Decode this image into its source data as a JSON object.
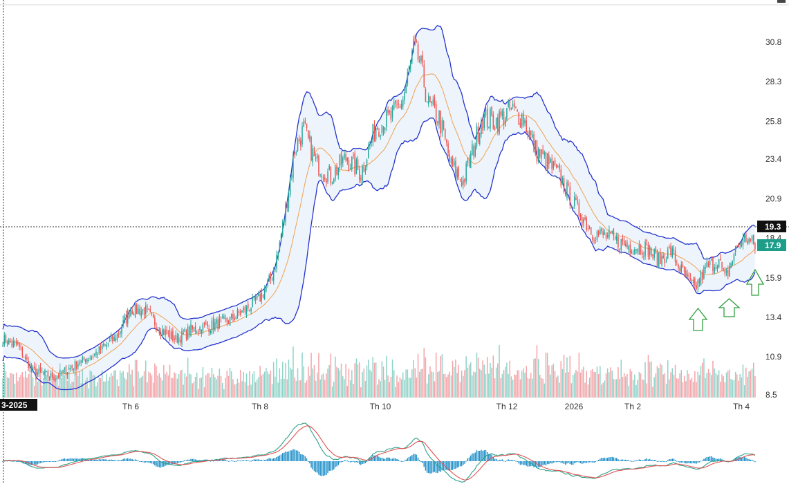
{
  "chart_data": {
    "type": "candlestick",
    "y_axis_ticks": [
      "30.8",
      "28.3",
      "25.8",
      "23.4",
      "20.9",
      "18.4",
      "15.9",
      "13.4",
      "10.9",
      "8.5"
    ],
    "x_axis_ticks": [
      "Th 6",
      "Th 8",
      "Th 10",
      "Th 12",
      "2026",
      "Th 2",
      "Th 4"
    ],
    "x_start_label": "3-2025",
    "ylim": [
      8.5,
      30.8
    ],
    "crosshair_price": "19.3",
    "last_price": "17.9",
    "last_price_color": "#1d9d8a",
    "up_color": "#26a69a",
    "down_color": "#ef5350",
    "band_color": "#2233cc",
    "mid_color": "#f0a050",
    "macd_line_color": "#2aa08a",
    "signal_line_color": "#e05050",
    "hist_color": "#1f8fc8",
    "indicators": [
      "Bollinger Bands",
      "MACD"
    ],
    "annotations": [
      "up-arrow",
      "up-arrow",
      "up-arrow"
    ],
    "close_keypoints": [
      [
        0,
        12.0
      ],
      [
        10,
        11.6
      ],
      [
        20,
        10.0
      ],
      [
        35,
        9.6
      ],
      [
        50,
        10.5
      ],
      [
        60,
        11.0
      ],
      [
        75,
        12.1
      ],
      [
        85,
        13.9
      ],
      [
        95,
        13.8
      ],
      [
        105,
        12.6
      ],
      [
        115,
        12.0
      ],
      [
        125,
        12.6
      ],
      [
        140,
        12.9
      ],
      [
        150,
        13.2
      ],
      [
        160,
        13.8
      ],
      [
        170,
        14.5
      ],
      [
        178,
        15.8
      ],
      [
        183,
        17.5
      ],
      [
        188,
        20.3
      ],
      [
        194,
        24.0
      ],
      [
        200,
        25.3
      ],
      [
        208,
        23.2
      ],
      [
        218,
        22.3
      ],
      [
        228,
        23.5
      ],
      [
        238,
        22.5
      ],
      [
        248,
        25.5
      ],
      [
        258,
        26.0
      ],
      [
        266,
        27.2
      ],
      [
        273,
        30.3
      ],
      [
        277,
        29.6
      ],
      [
        283,
        26.8
      ],
      [
        290,
        26.0
      ],
      [
        298,
        23.0
      ],
      [
        306,
        22.0
      ],
      [
        312,
        23.8
      ],
      [
        318,
        26.0
      ],
      [
        328,
        25.8
      ],
      [
        338,
        26.5
      ],
      [
        346,
        26.0
      ],
      [
        354,
        24.0
      ],
      [
        362,
        23.2
      ],
      [
        370,
        22.3
      ],
      [
        380,
        20.5
      ],
      [
        392,
        18.8
      ],
      [
        404,
        18.4
      ],
      [
        416,
        17.9
      ],
      [
        428,
        17.8
      ],
      [
        436,
        17.0
      ],
      [
        444,
        17.6
      ],
      [
        452,
        16.2
      ],
      [
        460,
        15.2
      ],
      [
        468,
        16.6
      ],
      [
        476,
        17.0
      ],
      [
        480,
        15.8
      ],
      [
        488,
        17.9
      ],
      [
        494,
        18.4
      ],
      [
        500,
        17.9
      ]
    ]
  }
}
